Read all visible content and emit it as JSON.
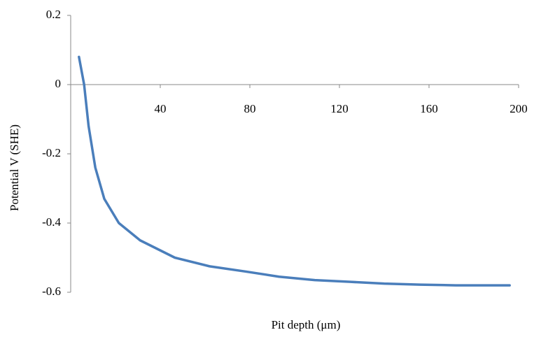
{
  "chart_data": {
    "type": "line",
    "x_label": "Pit depth (μm)",
    "y_label": "Potential V (SHE)",
    "xlim": [
      0,
      200
    ],
    "xticks": [
      40,
      80,
      120,
      160,
      200
    ],
    "ylim": [
      -0.6,
      0.2
    ],
    "yticks": [
      -0.6,
      -0.4,
      -0.2,
      0,
      0.2
    ],
    "grid": false,
    "series": [
      {
        "name": "Potential",
        "color": "#4a7ebb",
        "x": [
          3.7,
          6,
          8,
          11,
          15,
          21.5,
          31,
          46.5,
          62,
          78,
          93,
          109,
          125,
          140,
          156,
          172,
          196
        ],
        "values": [
          0.08,
          0,
          -0.12,
          -0.24,
          -0.33,
          -0.4,
          -0.45,
          -0.5,
          -0.525,
          -0.54,
          -0.555,
          -0.565,
          -0.57,
          -0.575,
          -0.578,
          -0.58,
          -0.58
        ]
      }
    ]
  }
}
